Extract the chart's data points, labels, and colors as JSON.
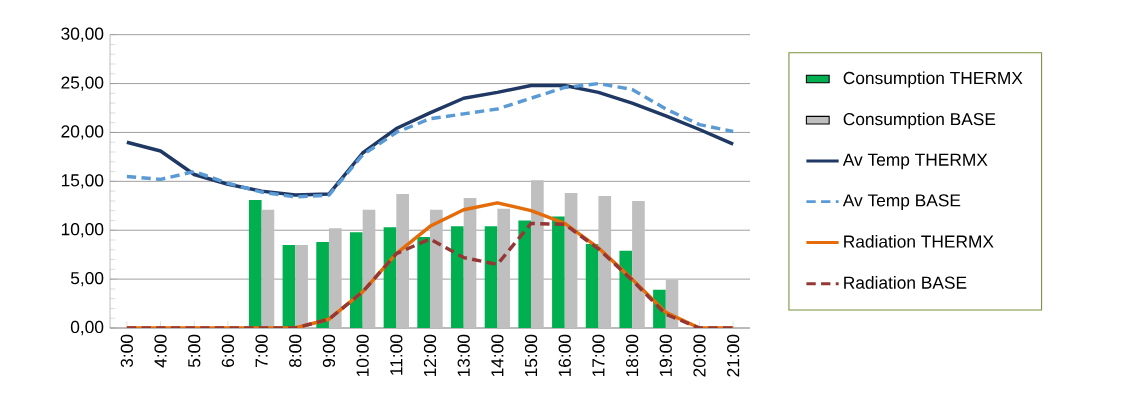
{
  "chart_data": {
    "type": "bar",
    "categories": [
      "3:00",
      "4:00",
      "5:00",
      "6:00",
      "7:00",
      "8:00",
      "9:00",
      "10:00",
      "11:00",
      "12:00",
      "13:00",
      "14:00",
      "15:00",
      "16:00",
      "17:00",
      "18:00",
      "19:00",
      "20:00",
      "21:00"
    ],
    "series": [
      {
        "name": "Consumption THERMX",
        "color": "#00b050",
        "values": [
          null,
          null,
          null,
          null,
          13.1,
          8.5,
          8.8,
          9.8,
          10.3,
          9.3,
          10.4,
          10.4,
          11.0,
          11.4,
          8.6,
          7.9,
          3.9,
          null,
          null
        ]
      },
      {
        "name": "Consumption BASE",
        "color": "#bfbfbf",
        "values": [
          null,
          null,
          null,
          null,
          12.1,
          8.5,
          10.2,
          12.1,
          13.7,
          12.1,
          13.3,
          12.2,
          15.1,
          13.8,
          13.5,
          13.0,
          4.9,
          null,
          null
        ]
      },
      {
        "name": "Av Temp THERMX",
        "type": "line",
        "color": "#1f3864",
        "line_style": "solid",
        "values": [
          19.0,
          18.1,
          15.7,
          14.7,
          14.0,
          13.6,
          13.7,
          17.9,
          20.4,
          22.0,
          23.5,
          24.1,
          24.8,
          24.8,
          24.1,
          23.0,
          21.7,
          20.3,
          18.8
        ]
      },
      {
        "name": "Av Temp BASE",
        "type": "line",
        "color": "#5b9bd5",
        "line_style": "dashed",
        "values": [
          15.5,
          15.2,
          16.0,
          14.8,
          13.9,
          13.4,
          13.6,
          17.7,
          20.0,
          21.4,
          21.9,
          22.4,
          23.5,
          24.6,
          25.0,
          24.4,
          22.4,
          20.8,
          20.1
        ]
      },
      {
        "name": "Radiation THERMX",
        "type": "line",
        "color": "#e46c0a",
        "line_style": "solid",
        "values": [
          0,
          0,
          0,
          0,
          0,
          0,
          0.9,
          3.7,
          7.6,
          10.4,
          12.1,
          12.8,
          12.0,
          10.7,
          8.2,
          5.0,
          1.6,
          0,
          0
        ]
      },
      {
        "name": "Radiation BASE",
        "type": "line",
        "color": "#953735",
        "line_style": "dashed",
        "values": [
          0,
          0,
          0,
          0,
          0,
          0,
          0.9,
          3.7,
          7.6,
          9.1,
          7.2,
          6.5,
          10.7,
          10.6,
          8.1,
          4.9,
          1.4,
          0,
          0
        ]
      }
    ],
    "ylim": [
      0,
      30
    ],
    "yticks": [
      {
        "value": 0,
        "label": "0,00"
      },
      {
        "value": 5,
        "label": "5,00"
      },
      {
        "value": 10,
        "label": "10,00"
      },
      {
        "value": 15,
        "label": "15,00"
      },
      {
        "value": 20,
        "label": "20,00"
      },
      {
        "value": 25,
        "label": "25,00"
      },
      {
        "value": 30,
        "label": "30,00"
      }
    ],
    "grid": "y",
    "legend": "right",
    "marker": "none"
  }
}
